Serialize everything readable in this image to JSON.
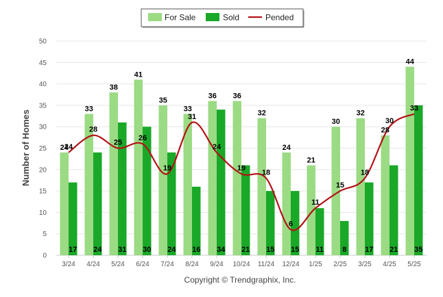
{
  "chart_data": {
    "type": "bar",
    "ylabel": "Number of Homes",
    "ylim": [
      0,
      50
    ],
    "yticks": [
      0,
      5,
      10,
      15,
      20,
      25,
      30,
      35,
      40,
      45,
      50
    ],
    "categories": [
      "3/24",
      "4/24",
      "5/24",
      "6/24",
      "7/24",
      "8/24",
      "9/24",
      "10/24",
      "11/24",
      "12/24",
      "1/25",
      "2/25",
      "3/25",
      "4/25",
      "5/25"
    ],
    "series": [
      {
        "name": "For Sale",
        "kind": "bar",
        "color": "#9bdb84",
        "values": [
          24,
          33,
          38,
          41,
          35,
          33,
          36,
          36,
          32,
          24,
          21,
          30,
          32,
          28,
          44
        ]
      },
      {
        "name": "Sold",
        "kind": "bar",
        "color": "#1aa828",
        "values": [
          17,
          24,
          31,
          30,
          24,
          16,
          34,
          21,
          15,
          15,
          11,
          8,
          17,
          21,
          35
        ]
      },
      {
        "name": "Pended",
        "kind": "line",
        "color": "#b31218",
        "values": [
          24,
          28,
          25,
          26,
          19,
          31,
          24,
          19,
          18,
          6,
          11,
          15,
          18,
          30,
          33
        ]
      }
    ],
    "legend_position": "top-center",
    "grid": true
  },
  "footer": {
    "copyright": "Copyright © Trendgraphix, Inc."
  }
}
